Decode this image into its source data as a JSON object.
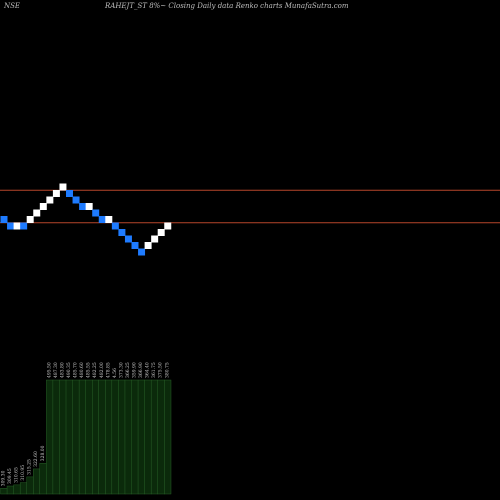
{
  "header": {
    "exchange": "NSE",
    "title": "RAHEJT_ST 8%~ Closing Daily data  Renko  charts MunafaSutra.com"
  },
  "colors": {
    "background": "#000000",
    "up_brick": "#ffffff",
    "down_brick": "#1e7bff",
    "reference_line": "#b5452a",
    "volume_fill": "#0b2a0b",
    "volume_outline": "#2e6b2e"
  },
  "chart_data": {
    "type": "renko",
    "brick_direction": [
      "down",
      "down",
      "up",
      "down",
      "up",
      "up",
      "up",
      "up",
      "up",
      "up",
      "down",
      "down",
      "down",
      "up",
      "down",
      "down",
      "up",
      "down",
      "down",
      "down",
      "down",
      "down",
      "up",
      "up",
      "up",
      "up"
    ],
    "brick_level": [
      0,
      -1,
      -1,
      -1,
      0,
      1,
      2,
      3,
      4,
      5,
      4,
      3,
      2,
      2,
      1,
      0,
      0,
      -1,
      -2,
      -3,
      -4,
      -5,
      -4,
      -3,
      -2,
      -1
    ],
    "reference_lines": [
      4.5,
      -0.5
    ],
    "volume_labels": [
      "309.30",
      "309.45",
      "310.65",
      "310.95",
      "315.25",
      "322.60",
      "328.00",
      "495.50",
      "487.30",
      "483.80",
      "490.35",
      "485.70",
      "480.60",
      "485.55",
      "482.25",
      "482.00",
      "478.85",
      "4.56",
      "373.30",
      "366.25",
      "359.90",
      "366.90",
      "364.40",
      "361.75",
      "375.50",
      "380.75"
    ],
    "volume_values": [
      0.05,
      0.07,
      0.08,
      0.1,
      0.15,
      0.22,
      0.27,
      1.0,
      1.0,
      1.0,
      1.0,
      1.0,
      1.0,
      1.0,
      1.0,
      1.0,
      1.0,
      1.0,
      1.0,
      1.0,
      1.0,
      1.0,
      1.0,
      1.0,
      1.0,
      1.0
    ]
  }
}
